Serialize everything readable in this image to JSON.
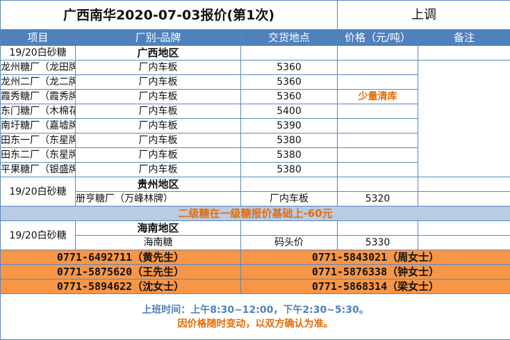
{
  "title": "广西南华2020-07-03报价(第1次)",
  "trend": "上调",
  "headers": [
    "项目",
    "厂别-品牌",
    "交货地点",
    "价格（元/吨）",
    "备注"
  ],
  "product": "19/20白砂糖",
  "guangxi": {
    "region": "广西地区",
    "rows": [
      {
        "brand": "龙州糖厂（龙田牌）",
        "place": "厂内车板",
        "price": "5360",
        "note": ""
      },
      {
        "brand": "龙州二厂（龙二牌）",
        "place": "厂内车板",
        "price": "5360",
        "note": ""
      },
      {
        "brand": "霞秀糖厂（霞秀牌）",
        "place": "厂内车板",
        "price": "5360",
        "note": "少量清库"
      },
      {
        "brand": "东门糖厂（木棉花牌）",
        "place": "厂内车板",
        "price": "5400",
        "note": ""
      },
      {
        "brand": "南圩糖厂（嘉墟牌）",
        "place": "厂内车板",
        "price": "5390",
        "note": ""
      },
      {
        "brand": "田东一厂（东星牌）",
        "place": "厂内车板",
        "price": "5380",
        "note": ""
      },
      {
        "brand": "田东二厂（东星牌）",
        "place": "厂内车板",
        "price": "5380",
        "note": ""
      },
      {
        "brand": "平果糖厂（银盛牌）",
        "place": "厂内车板",
        "price": "5380",
        "note": ""
      }
    ]
  },
  "guizhou": {
    "region": "贵州地区",
    "rows": [
      {
        "brand": "册亨糖厂（万峰林牌）",
        "place": "厂内车板",
        "price": "5320"
      }
    ]
  },
  "band": "二级糖在一级糖报价基础上-60元",
  "hainan": {
    "region": "海南地区",
    "rows": [
      {
        "brand": "海南糖",
        "place": "码头价",
        "price": "5330"
      }
    ]
  },
  "contacts": [
    [
      "0771-6492711（黄先生）",
      "0771-5843021（周女士）"
    ],
    [
      "0771-5875620（王先生）",
      "0771-5876338（钟女士）"
    ],
    [
      "0771-5894622（沈女士）",
      "0771-5868314（梁女士）"
    ]
  ],
  "footer": {
    "hours": "上班时间：上午8:30~12:00，下午2:30~5:30。",
    "disclaimer": "因价格随时变动，以双方确认为准。"
  },
  "colors": {
    "header": "#4f81bd",
    "band": "#b8cce4",
    "contact": "#f79646",
    "accent": "#e46c0a"
  }
}
